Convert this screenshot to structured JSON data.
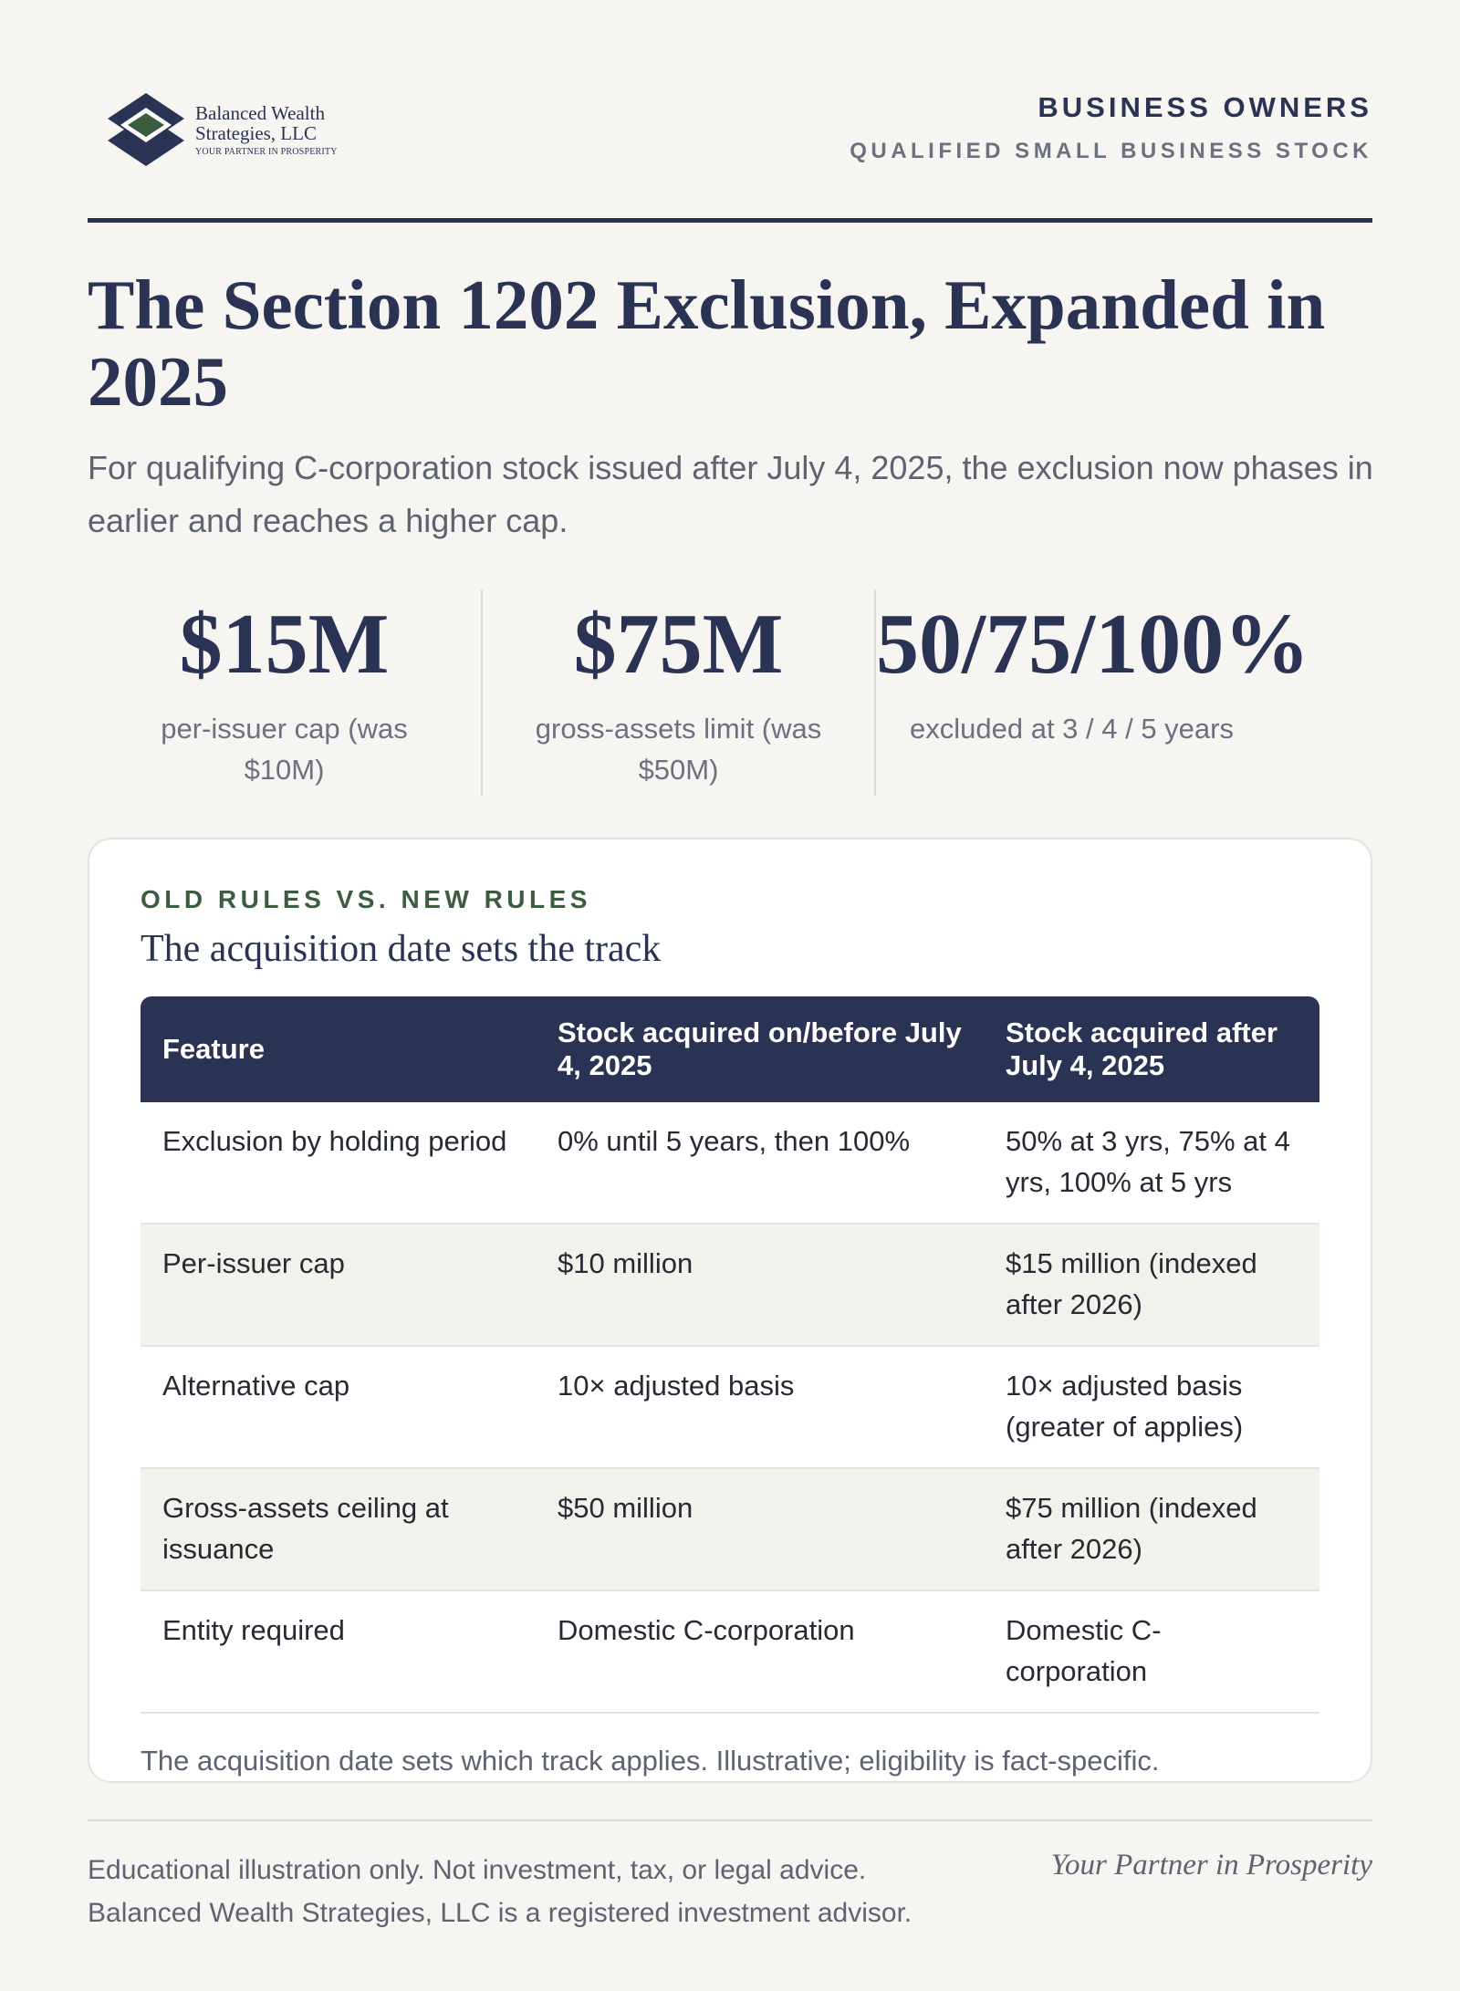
{
  "header": {
    "logo": {
      "name_line1": "Balanced Wealth",
      "name_line2": "Strategies, LLC",
      "tagline": "YOUR PARTNER IN PROSPERITY",
      "icon": "diamond-logo-icon",
      "colors": {
        "navy": "#2a3354",
        "green": "#3c5c40"
      }
    },
    "kicker": "BUSINESS OWNERS",
    "subkicker": "QUALIFIED SMALL BUSINESS STOCK"
  },
  "title": "The Section 1202 Exclusion, Expanded in 2025",
  "lede": "For qualifying C-corporation stock issued after July 4, 2025, the exclusion now phases in earlier and reaches a higher cap.",
  "stats": [
    {
      "value": "$15M",
      "label": "per-issuer cap (was $10M)"
    },
    {
      "value": "$75M",
      "label": "gross-assets limit (was $50M)"
    },
    {
      "value": "50/75/100%",
      "label": "excluded at 3 / 4 / 5 years"
    }
  ],
  "card": {
    "kicker": "OLD RULES VS. NEW RULES",
    "title": "The acquisition date sets the track",
    "table": {
      "headers": [
        "Feature",
        "Stock acquired on/before July 4, 2025",
        "Stock acquired after July 4, 2025"
      ],
      "rows": [
        [
          "Exclusion by holding period",
          "0% until 5 years, then 100%",
          "50% at 3 yrs, 75% at 4 yrs, 100% at 5 yrs"
        ],
        [
          "Per-issuer cap",
          "$10 million",
          "$15 million (indexed after 2026)"
        ],
        [
          "Alternative cap",
          "10× adjusted basis",
          "10× adjusted basis (greater of applies)"
        ],
        [
          "Gross-assets ceiling at issuance",
          "$50 million",
          "$75 million (indexed after 2026)"
        ],
        [
          "Entity required",
          "Domestic C-corporation",
          "Domestic C-corporation"
        ]
      ]
    },
    "note": "The acquisition date sets which track applies. Illustrative; eligibility is fact-specific."
  },
  "footer": {
    "disclaimer_line1": "Educational illustration only. Not investment, tax, or legal advice.",
    "disclaimer_line2": "Balanced Wealth Strategies, LLC is a registered investment advisor.",
    "tagline": "Your Partner in Prosperity"
  }
}
